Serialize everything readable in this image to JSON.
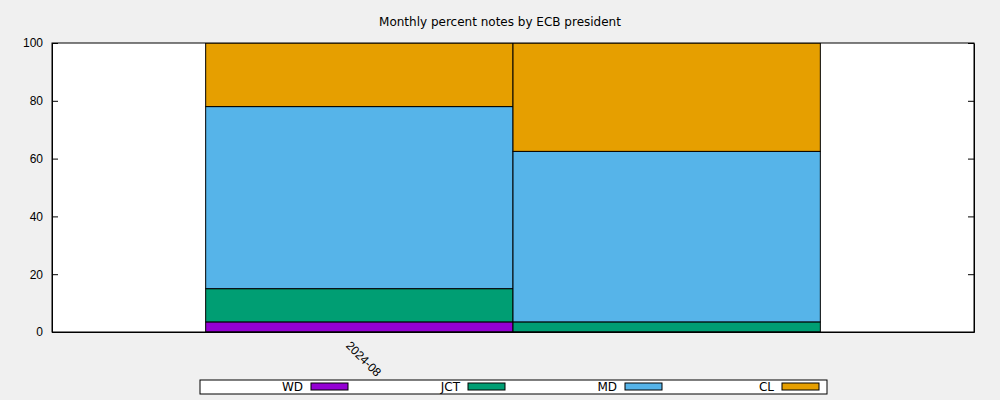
{
  "chart_data": {
    "type": "bar",
    "title": "Monthly percent notes by ECB president",
    "stacked": true,
    "categories": [
      "2024-08",
      null
    ],
    "series": [
      {
        "name": "WD",
        "color": "#9400d3",
        "values": [
          3.5,
          0
        ]
      },
      {
        "name": "JCT",
        "color": "#009e73",
        "values": [
          11.5,
          3.5
        ]
      },
      {
        "name": "MD",
        "color": "#56b4e9",
        "values": [
          63,
          59
        ]
      },
      {
        "name": "CL",
        "color": "#e69f00",
        "values": [
          22,
          37.5
        ]
      }
    ],
    "ylim": [
      0,
      100
    ],
    "yticks": [
      0,
      20,
      40,
      60,
      80,
      100
    ],
    "legend": "bottom"
  }
}
